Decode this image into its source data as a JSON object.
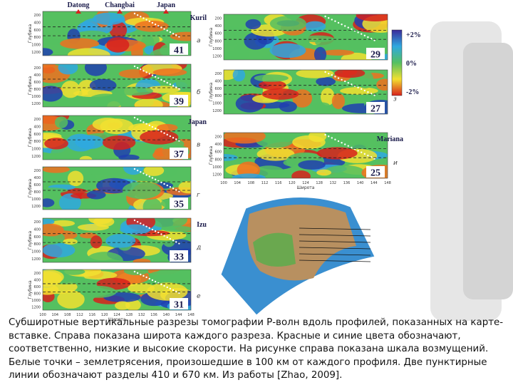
{
  "figure": {
    "top_labels": [
      "Datong",
      "Changbai",
      "Japan"
    ],
    "left_panels": [
      {
        "number": "41",
        "letter": "а",
        "label": "Kuril"
      },
      {
        "number": "39",
        "letter": "б"
      },
      {
        "number": "37",
        "letter": "в",
        "label": "Japan"
      },
      {
        "number": "35",
        "letter": "г"
      },
      {
        "number": "33",
        "letter": "д",
        "label": "Izu"
      },
      {
        "number": "31",
        "letter": "е"
      }
    ],
    "right_panels": [
      {
        "number": "29",
        "letter": "ж"
      },
      {
        "number": "27",
        "letter": "з"
      },
      {
        "number": "25",
        "letter": "и",
        "label": "Mariana"
      }
    ],
    "colorbar": [
      "+2%",
      "0%",
      "-2%"
    ],
    "depth_axis": "Глубина",
    "depth_ticks": [
      "200",
      "400",
      "600",
      "800",
      "1000",
      "1200"
    ],
    "lat_axis": "Широта",
    "lat_ticks": [
      "100",
      "104",
      "108",
      "112",
      "116",
      "120",
      "124",
      "128",
      "132",
      "136",
      "140",
      "144",
      "148"
    ]
  },
  "caption": "Субширотные вертикальные разрезы томографии Р-волн вдоль профилей, показанных на карте-вставке. Справа показана широта каждого разреза. Красные и синие цвета обозначают, соответственно, низкие и высокие скорости. На рисунке справа показана шкала возмущений. Белые точки – землетрясения, произошедшие в 100 км от каждого профиля. Две пунктирные линии обозначают разделы 410 и 670 км. Из работы [Zhao, 2009]."
}
